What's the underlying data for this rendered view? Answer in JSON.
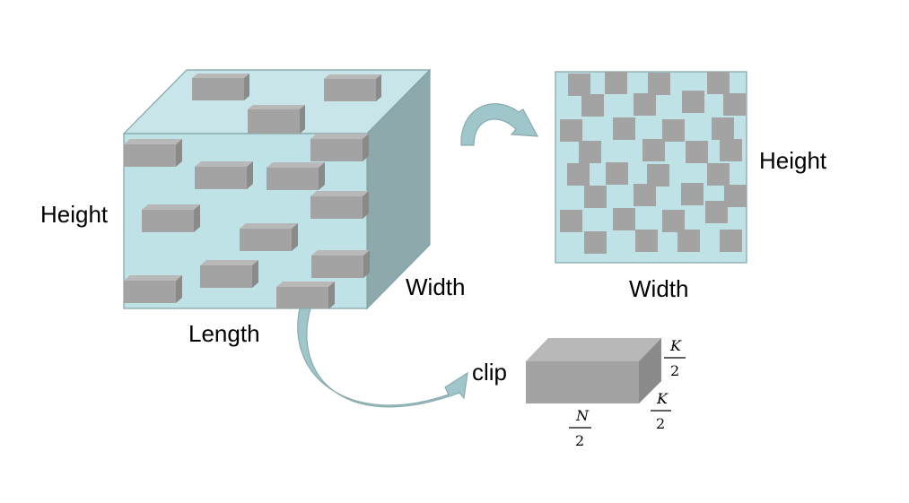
{
  "labels": {
    "cube_height": "Height",
    "cube_length": "Length",
    "cube_width": "Width",
    "slice_height": "Height",
    "slice_width": "Width",
    "clip": "clip"
  },
  "math": {
    "top_num": "K",
    "top_den": "2",
    "right_num": "K",
    "right_den": "2",
    "bottom_num": "N",
    "bottom_den": "2"
  },
  "colors": {
    "cube_front": "#bfe2e6",
    "cube_top": "#c8e6e9",
    "cube_side": "#8ea9ac",
    "block_front": "#a3a3a3",
    "block_top": "#b8b8b8",
    "block_side": "#8a8a8a",
    "arrow_fill": "#9fc6ca",
    "arrow_stroke": "#8aa9ad"
  }
}
